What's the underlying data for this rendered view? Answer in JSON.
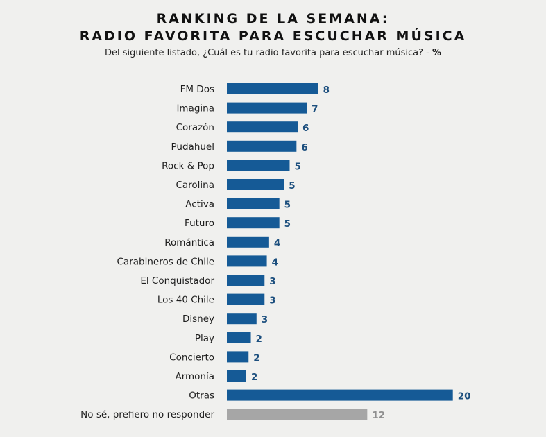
{
  "header": {
    "title_line1": "RANKING DE LA SEMANA:",
    "title_line2": "RADIO FAVORITA PARA ESCUCHAR MÚSICA",
    "subtitle": "Del siguiente listado, ¿Cuál es tu radio favorita para escuchar música? -",
    "unit": "%"
  },
  "colors": {
    "bar": "#155a96",
    "bar_other": "#a6a6a6",
    "value_label": "#1c4f7e",
    "value_label_other": "#8f8f8f"
  },
  "chart_data": {
    "type": "bar",
    "orientation": "horizontal",
    "title": "RANKING DE LA SEMANA: RADIO FAVORITA PARA ESCUCHAR MÚSICA",
    "xlabel": "",
    "ylabel": "",
    "unit": "%",
    "categories": [
      "FM Dos",
      "Imagina",
      "Corazón",
      "Pudahuel",
      "Rock & Pop",
      "Carolina",
      "Activa",
      "Futuro",
      "Romántica",
      "Carabineros de Chile",
      "El Conquistador",
      "Los 40 Chile",
      "Disney",
      "Play",
      "Concierto",
      "Armonía",
      "Otras",
      "No sé, prefiero no responder"
    ],
    "values": [
      8,
      7,
      6,
      6,
      5,
      5,
      5,
      5,
      4,
      4,
      3,
      3,
      3,
      2,
      2,
      2,
      20,
      12
    ],
    "bar_lengths": [
      8,
      7,
      6.2,
      6.1,
      5.5,
      5,
      4.6,
      4.6,
      3.7,
      3.5,
      3.3,
      3.3,
      2.6,
      2.1,
      1.9,
      1.7,
      19.8,
      12.3
    ],
    "highlight_gray": [
      "No sé, prefiero no responder"
    ],
    "xlim": [
      0,
      20
    ]
  }
}
